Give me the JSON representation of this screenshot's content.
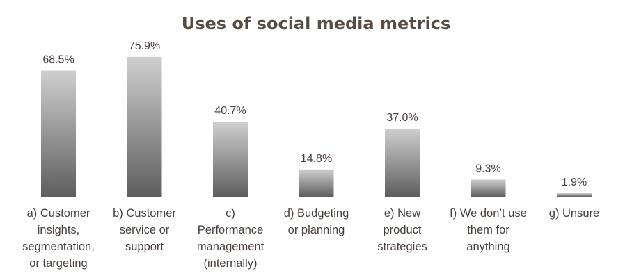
{
  "chart_data": {
    "type": "bar",
    "title": "Uses of social media metrics",
    "xlabel": "",
    "ylabel": "",
    "ylim": [
      0,
      80
    ],
    "grid": false,
    "legend": "none",
    "categories": [
      "a) Customer insights, segmentation, or targeting",
      "b) Customer service or support",
      "c) Performance management (internally)",
      "d) Budgeting or planning",
      "e) New product strategies",
      "f) We don’t use them for anything",
      "g) Unsure"
    ],
    "category_lines": [
      [
        "a) Customer",
        "insights,",
        "segmentation,",
        "or targeting"
      ],
      [
        "b) Customer",
        "service or",
        "support"
      ],
      [
        "c)",
        "Performance",
        "management",
        "(internally)"
      ],
      [
        "d) Budgeting",
        "or planning"
      ],
      [
        "e) New",
        "product",
        "strategies"
      ],
      [
        "f) We don’t use",
        "them for",
        "anything"
      ],
      [
        "g) Unsure"
      ]
    ],
    "values": [
      68.5,
      75.9,
      40.7,
      14.8,
      37.0,
      9.3,
      1.9
    ],
    "value_labels": [
      "68.5%",
      "75.9%",
      "40.7%",
      "14.8%",
      "37.0%",
      "9.3%",
      "1.9%"
    ],
    "colors": {
      "bar_top": "#cfcfcf",
      "bar_bottom": "#5e5e5e",
      "axis": "#9a9a9a",
      "title": "#5a4a44",
      "text": "#4a3e3a"
    }
  }
}
